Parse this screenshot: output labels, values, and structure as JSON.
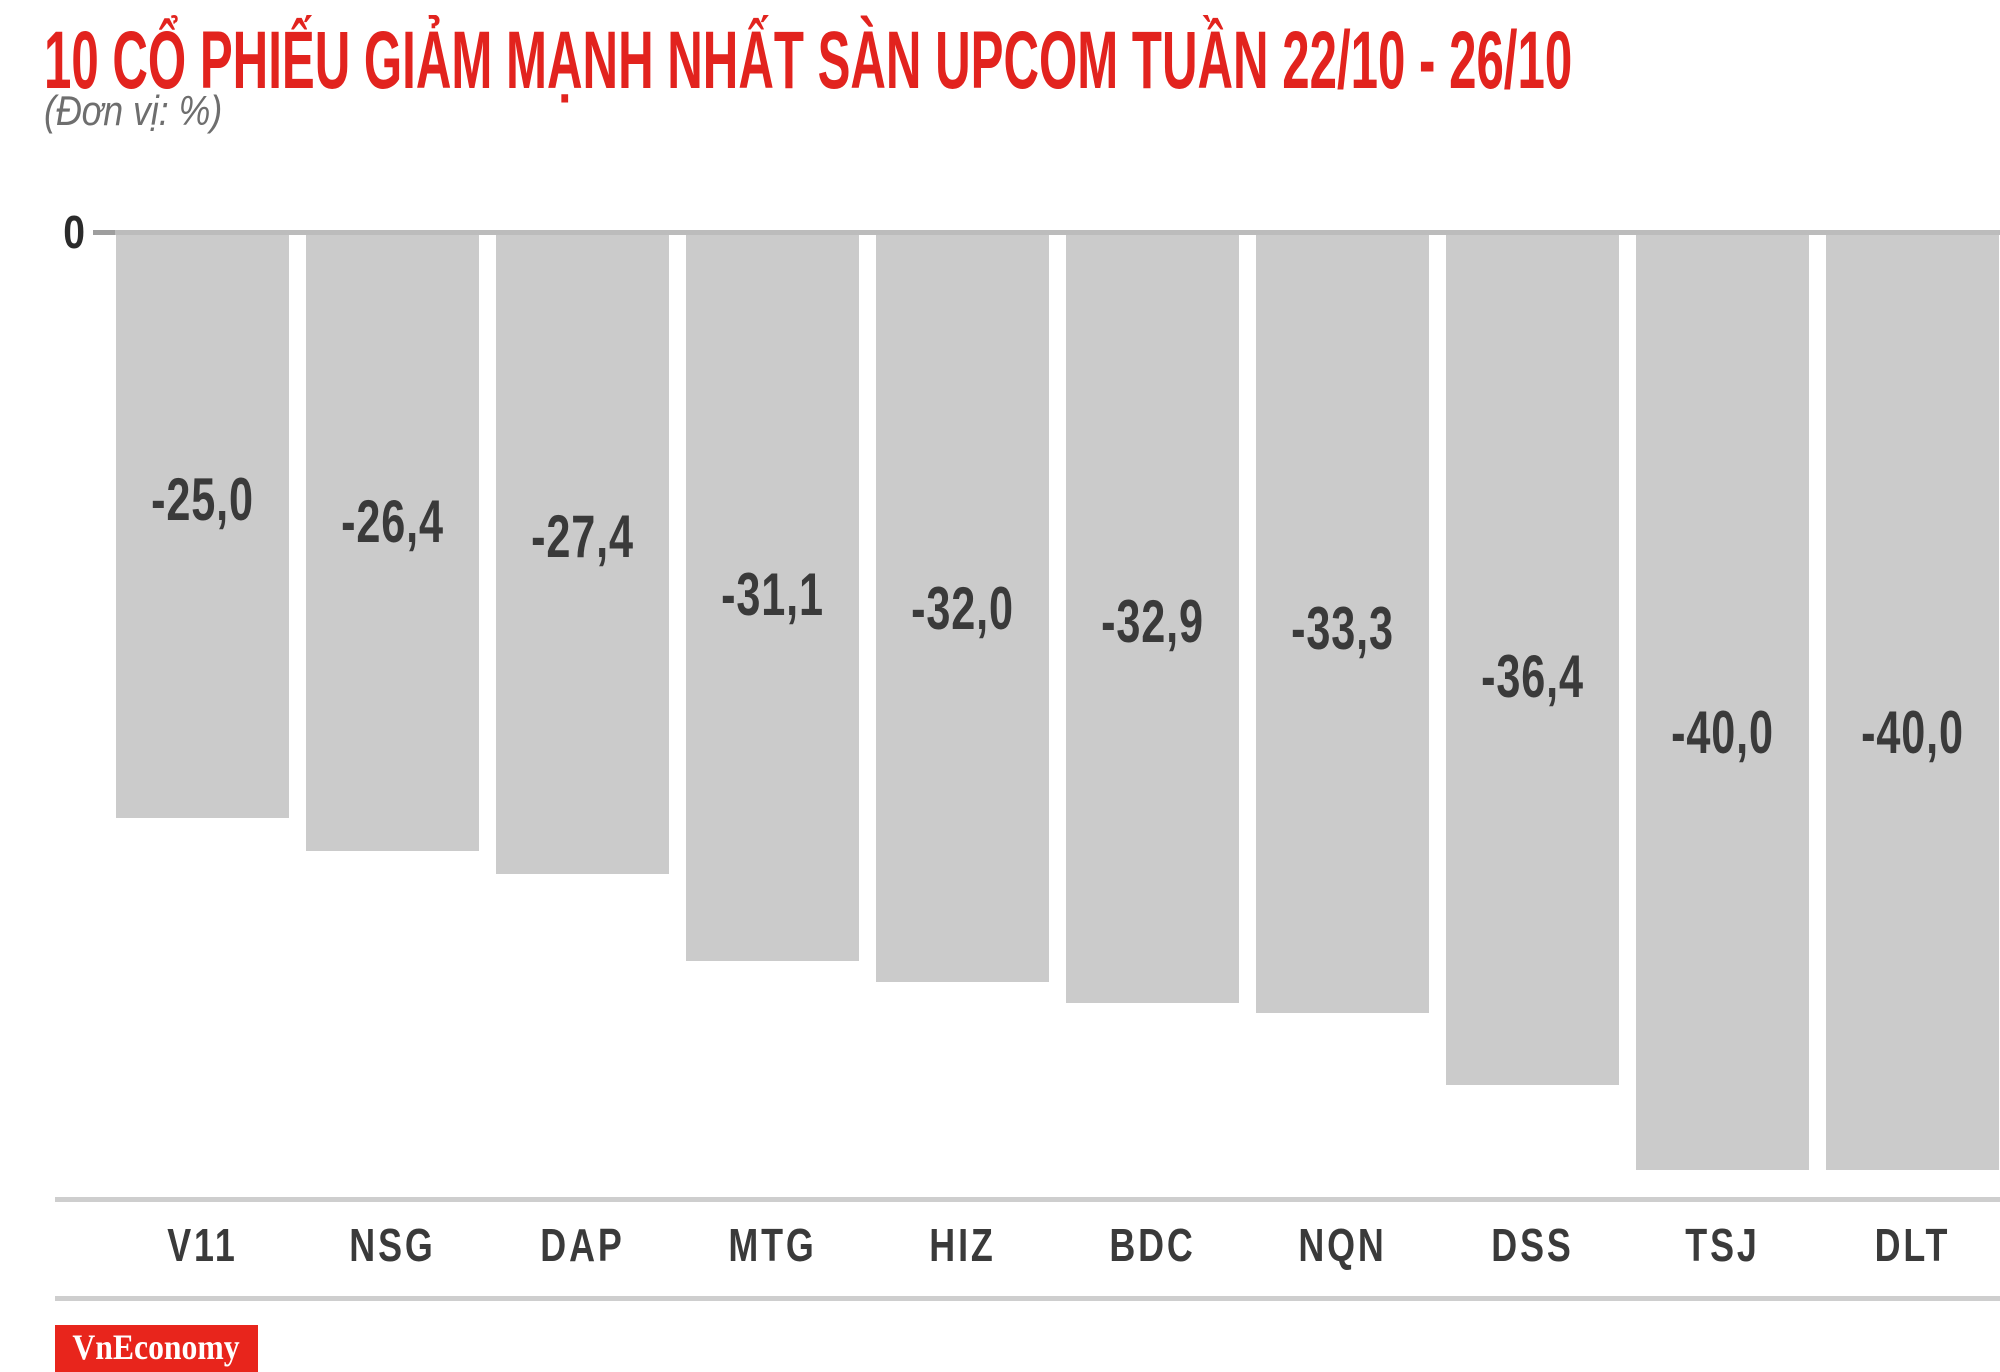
{
  "header": {
    "title": "10 CỔ PHIẾU GIẢM MẠNH NHẤT SÀN UPCOM TUẦN 22/10 - 26/10",
    "subtitle": "(Đơn vị: %)"
  },
  "axis": {
    "zero_tick_label": "0"
  },
  "chart_data": {
    "type": "bar",
    "orientation": "vertical",
    "direction": "negative-down-from-zero",
    "title": "10 CỔ PHIẾU GIẢM MẠNH NHẤT SÀN UPCOM TUẦN 22/10 - 26/10",
    "unit": "%",
    "categories": [
      "V11",
      "NSG",
      "DAP",
      "MTG",
      "HIZ",
      "BDC",
      "NQN",
      "DSS",
      "TSJ",
      "DLT"
    ],
    "values": [
      -25.0,
      -26.4,
      -27.4,
      -31.1,
      -32.0,
      -32.9,
      -33.3,
      -36.4,
      -40.0,
      -40.0
    ],
    "value_labels": [
      "-25,0",
      "-26,4",
      "-27,4",
      "-31,1",
      "-32,0",
      "-32,9",
      "-33,3",
      "-36,4",
      "-40,0",
      "-40,0"
    ],
    "ylim": [
      -41.5,
      0
    ],
    "grid": false,
    "legend_position": "none"
  },
  "colors": {
    "title_red": "#e2231e",
    "logo_red": "#e8251c",
    "bar_fill": "#cbcbcb",
    "value_text": "#3a3a3a",
    "category_text": "#3a3a3a",
    "subtitle_gray": "#6e6e6e",
    "zero_label_dark": "#2b2b2b",
    "zero_line_gray": "#bcbcbc",
    "axis_line_gray": "#cecece",
    "background": "#ffffff"
  },
  "footer": {
    "logo_text": "VnEconomy"
  }
}
